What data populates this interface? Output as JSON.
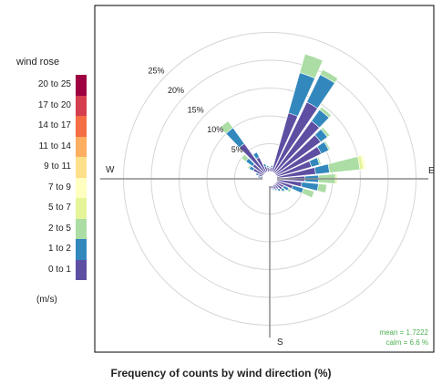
{
  "chart_data": {
    "type": "wind-rose",
    "title": "wind rose",
    "caption": "Frequency of counts by wind direction (%)",
    "units": "(m/s)",
    "direction_labels": {
      "W": "W",
      "E": "E",
      "S": "S"
    },
    "ring_labels": [
      "5%",
      "10%",
      "15%",
      "20%",
      "25%"
    ],
    "ring_values": [
      5,
      10,
      15,
      20,
      25
    ],
    "rmax": 28,
    "legend": [
      {
        "label": "20 to 25",
        "color": "#9e0142"
      },
      {
        "label": "17 to 20",
        "color": "#d53e4f"
      },
      {
        "label": "14 to 17",
        "color": "#f46d43"
      },
      {
        "label": "11 to 14",
        "color": "#fdae61"
      },
      {
        "label": "9 to 11",
        "color": "#fee08b"
      },
      {
        "label": "7 to 9",
        "color": "#ffffbf"
      },
      {
        "label": "5 to 7",
        "color": "#e6f598"
      },
      {
        "label": "2 to 5",
        "color": "#abdda4"
      },
      {
        "label": "1 to 2",
        "color": "#3288bd"
      },
      {
        "label": "0 to 1",
        "color": "#5e4fa2"
      }
    ],
    "stack_order": [
      "0 to 1",
      "1 to 2",
      "2 to 5",
      "5 to 7",
      "7 to 9"
    ],
    "petals": [
      {
        "dir": 0,
        "values": [
          0.6,
          0.2,
          0.0
        ]
      },
      {
        "dir": 10,
        "values": [
          0.8,
          0.3,
          0.0
        ]
      },
      {
        "dir": 20,
        "values": [
          11.0,
          7.5,
          3.5
        ]
      },
      {
        "dir": 30,
        "values": [
          14.0,
          5.5,
          1.0
        ]
      },
      {
        "dir": 40,
        "values": [
          11.5,
          2.5,
          0.6
        ]
      },
      {
        "dir": 50,
        "values": [
          10.0,
          1.5,
          0.5
        ]
      },
      {
        "dir": 60,
        "values": [
          9.0,
          1.5,
          0.3
        ]
      },
      {
        "dir": 70,
        "values": [
          6.5,
          1.5,
          0.3
        ]
      },
      {
        "dir": 80,
        "values": [
          7.0,
          2.5,
          5.5,
          0.6,
          0.4
        ]
      },
      {
        "dir": 90,
        "values": [
          5.0,
          2.5,
          3.0,
          0.3
        ]
      },
      {
        "dir": 100,
        "values": [
          4.5,
          3.0,
          1.5
        ]
      },
      {
        "dir": 110,
        "values": [
          3.0,
          2.0,
          2.0
        ]
      },
      {
        "dir": 120,
        "values": [
          1.5,
          1.0,
          0.5
        ]
      },
      {
        "dir": 130,
        "values": [
          1.5,
          0.5,
          0.2
        ]
      },
      {
        "dir": 140,
        "values": [
          1.0,
          0.5,
          0.0
        ]
      },
      {
        "dir": 150,
        "values": [
          0.8,
          0.3,
          0.0
        ]
      },
      {
        "dir": 160,
        "values": [
          0.6,
          0.2,
          0.0
        ]
      },
      {
        "dir": 170,
        "values": [
          0.5,
          0.0,
          0.0
        ]
      },
      {
        "dir": 180,
        "values": [
          0.5,
          0.0,
          0.0
        ]
      },
      {
        "dir": 270,
        "values": [
          0.5,
          0.0,
          0.0
        ]
      },
      {
        "dir": 280,
        "values": [
          0.5,
          0.3,
          0.0
        ]
      },
      {
        "dir": 290,
        "values": [
          0.8,
          0.5,
          0.0
        ]
      },
      {
        "dir": 300,
        "values": [
          2.0,
          0.8,
          0.3
        ]
      },
      {
        "dir": 310,
        "values": [
          2.5,
          1.5,
          1.0
        ]
      },
      {
        "dir": 320,
        "values": [
          6.5,
          3.5,
          1.5
        ]
      },
      {
        "dir": 330,
        "values": [
          3.0,
          1.0,
          0.0
        ]
      },
      {
        "dir": 340,
        "values": [
          1.0,
          0.5,
          0.0
        ]
      },
      {
        "dir": 350,
        "values": [
          0.8,
          0.3,
          0.0
        ]
      }
    ],
    "stats": {
      "mean": "mean = 1.7222",
      "calm": "calm = 6.6 %"
    },
    "colors": {
      "grid": "#d6d6d6",
      "axis": "#8c8c8c",
      "stats_text": "#4caf50"
    }
  }
}
